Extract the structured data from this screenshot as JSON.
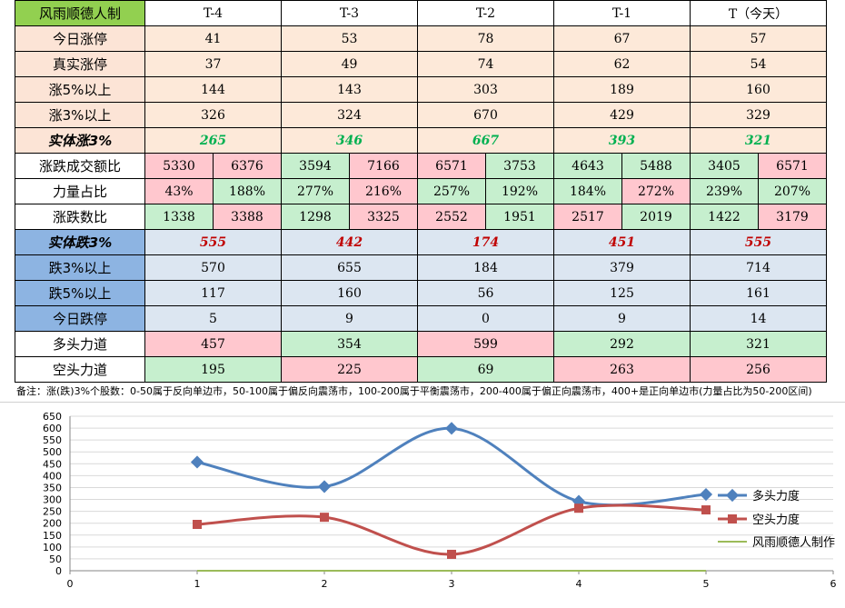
{
  "table": {
    "corner": "风雨顺德人制",
    "headers": [
      "T-4",
      "T-3",
      "T-2",
      "T-1",
      "T（今天）"
    ],
    "top_rows": [
      {
        "label": "今日涨停",
        "values": [
          "41",
          "53",
          "78",
          "67",
          "57"
        ]
      },
      {
        "label": "真实涨停",
        "values": [
          "37",
          "49",
          "74",
          "62",
          "54"
        ]
      },
      {
        "label": "涨5%以上",
        "values": [
          "144",
          "143",
          "303",
          "189",
          "160"
        ]
      },
      {
        "label": "涨3%以上",
        "values": [
          "326",
          "324",
          "670",
          "429",
          "329"
        ]
      },
      {
        "label": "实体涨3%",
        "values": [
          "265",
          "346",
          "667",
          "393",
          "321"
        ]
      }
    ],
    "split_rows": [
      {
        "label": "涨跌成交额比",
        "values": [
          "5330",
          "6376",
          "3594",
          "7166",
          "6571",
          "3753",
          "4643",
          "5488",
          "3405",
          "6571"
        ]
      },
      {
        "label": "力量占比",
        "values": [
          "43%",
          "188%",
          "277%",
          "216%",
          "257%",
          "192%",
          "184%",
          "272%",
          "239%",
          "207%"
        ]
      },
      {
        "label": "涨跌数比",
        "values": [
          "1338",
          "3388",
          "1298",
          "3325",
          "2552",
          "1951",
          "2517",
          "2019",
          "1422",
          "3179"
        ]
      }
    ],
    "bottom_rows": [
      {
        "label": "实体跌3%",
        "values": [
          "555",
          "442",
          "174",
          "451",
          "555"
        ]
      },
      {
        "label": "跌3%以上",
        "values": [
          "570",
          "655",
          "184",
          "379",
          "714"
        ]
      },
      {
        "label": "跌5%以上",
        "values": [
          "117",
          "160",
          "56",
          "125",
          "161"
        ]
      },
      {
        "label": "今日跌停",
        "values": [
          "5",
          "9",
          "0",
          "9",
          "14"
        ]
      }
    ],
    "force_rows": [
      {
        "label": "多头力道",
        "values": [
          "457",
          "354",
          "599",
          "292",
          "321"
        ]
      },
      {
        "label": "空头力道",
        "values": [
          "195",
          "225",
          "69",
          "263",
          "256"
        ]
      }
    ]
  },
  "note": "备注：涨(跌)3%个股数：0-50属于反向单边市，50-100属于偏反向震荡市，100-200属于平衡震荡市，200-400属于偏正向震荡市，400+是正向单边市(力量占比为50-200区间)",
  "colors": {
    "label_green": "#92d050",
    "label_peach": "#fce4d6",
    "label_blue": "#8db4e2",
    "value_peach": "#fde9d9",
    "value_blue": "#dce6f1",
    "cell_pink": "#ffc7ce",
    "cell_green": "#c6efce",
    "green_text": "#00b050",
    "red_text": "#c00000",
    "series_blue": "#4f81bd",
    "series_red": "#c0504d",
    "series_green": "#9bbb59"
  },
  "chart_data": {
    "type": "line",
    "x": [
      1,
      2,
      3,
      4,
      5
    ],
    "series": [
      {
        "name": "多头力度",
        "values": [
          457,
          354,
          599,
          292,
          321
        ]
      },
      {
        "name": "空头力度",
        "values": [
          195,
          225,
          69,
          263,
          256
        ]
      },
      {
        "name": "风雨顺德人制作",
        "values": [
          0,
          0,
          0,
          0,
          0
        ]
      }
    ],
    "xlim": [
      0,
      6
    ],
    "ylim": [
      0,
      650
    ],
    "x_ticks": [
      "0",
      "1",
      "2",
      "3",
      "4",
      "5",
      "6"
    ],
    "y_ticks": [
      "0",
      "50",
      "100",
      "150",
      "200",
      "250",
      "300",
      "350",
      "400",
      "450",
      "500",
      "550",
      "600",
      "650"
    ],
    "grid": true,
    "legend_position": "right"
  }
}
